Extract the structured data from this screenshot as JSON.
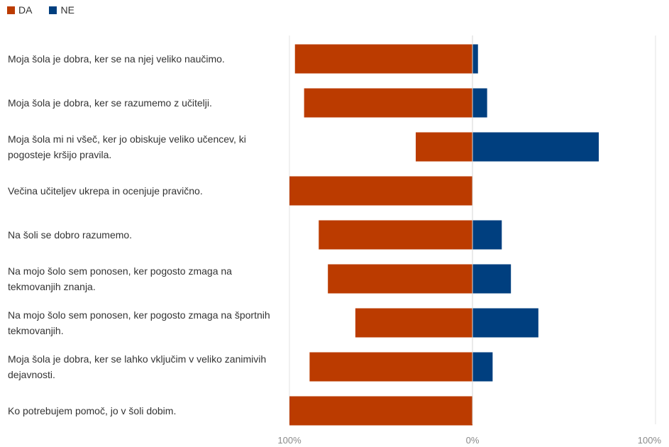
{
  "chart_data": {
    "type": "bar",
    "orientation": "horizontal-diverging",
    "legend": {
      "placement": "top-left"
    },
    "series": [
      {
        "name": "DA",
        "color": "#bb3b00",
        "values": [
          97,
          92,
          31,
          100,
          84,
          79,
          64,
          89,
          100
        ]
      },
      {
        "name": "NE",
        "color": "#003f7f",
        "values": [
          3,
          8,
          69,
          0,
          16,
          21,
          36,
          11,
          0
        ]
      }
    ],
    "categories": [
      "Moja šola je dobra, ker se na njej veliko naučimo.",
      "Moja šola je dobra, ker se razumemo z učitelji.",
      "Moja šola mi ni všeč, ker jo obiskuje veliko učencev, ki pogosteje kršijo pravila.",
      "Večina učiteljev ukrepa in ocenjuje pravično.",
      "Na šoli se dobro razumemo.",
      "Na mojo šolo sem ponosen, ker pogosto zmaga na tekmovanjih znanja.",
      "Na mojo šolo sem ponosen, ker pogosto zmaga na športnih tekmovanjih.",
      "Moja šola je dobra, ker se lahko vključim v veliko zanimivih dejavnosti.",
      "Ko potrebujem pomoč, jo v šoli dobim."
    ],
    "tick_labels": [
      "100%",
      "0%",
      "100%"
    ],
    "xlim": [
      -100,
      100
    ],
    "grid": true
  }
}
